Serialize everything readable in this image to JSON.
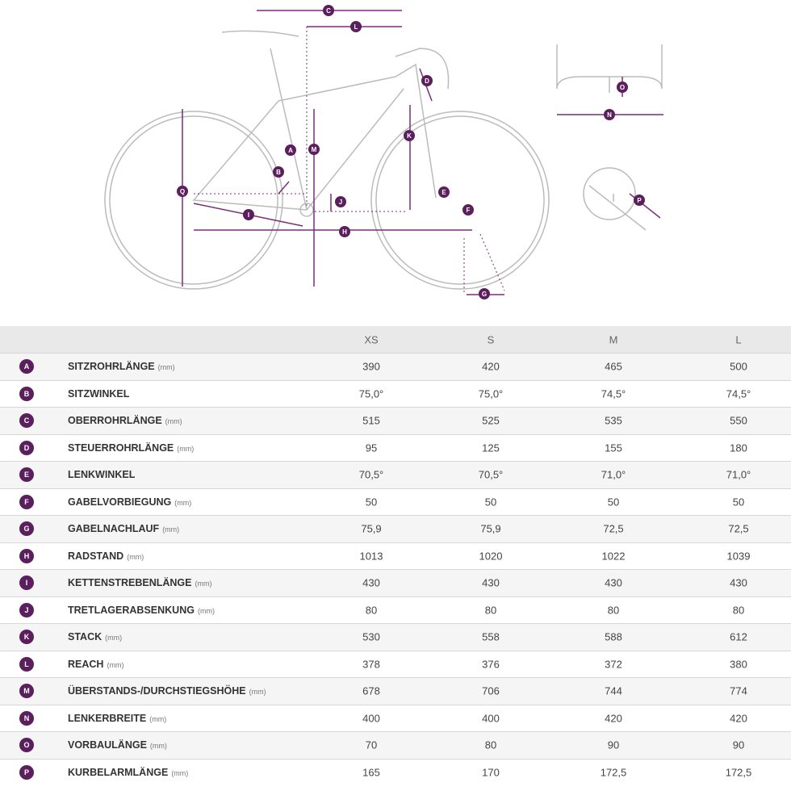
{
  "diagram": {
    "labels": [
      "C",
      "L",
      "D",
      "A",
      "M",
      "K",
      "B",
      "J",
      "E",
      "F",
      "Q",
      "I",
      "H",
      "G",
      "O",
      "N",
      "P"
    ]
  },
  "table": {
    "sizes": [
      "XS",
      "S",
      "M",
      "L"
    ],
    "rows": [
      {
        "letter": "A",
        "name": "SITZROHRLÄNGE",
        "unit": "(mm)",
        "values": [
          "390",
          "420",
          "465",
          "500"
        ]
      },
      {
        "letter": "B",
        "name": "SITZWINKEL",
        "values": [
          "75,0°",
          "75,0°",
          "74,5°",
          "74,5°"
        ]
      },
      {
        "letter": "C",
        "name": "OBERROHRLÄNGE",
        "unit": "(mm)",
        "values": [
          "515",
          "525",
          "535",
          "550"
        ]
      },
      {
        "letter": "D",
        "name": "STEUERROHRLÄNGE",
        "unit": "(mm)",
        "values": [
          "95",
          "125",
          "155",
          "180"
        ]
      },
      {
        "letter": "E",
        "name": "LENKWINKEL",
        "values": [
          "70,5°",
          "70,5°",
          "71,0°",
          "71,0°"
        ]
      },
      {
        "letter": "F",
        "name": "GABELVORBIEGUNG",
        "unit": "(mm)",
        "values": [
          "50",
          "50",
          "50",
          "50"
        ]
      },
      {
        "letter": "G",
        "name": "GABELNACHLAUF",
        "unit": "(mm)",
        "values": [
          "75,9",
          "75,9",
          "72,5",
          "72,5"
        ]
      },
      {
        "letter": "H",
        "name": "RADSTAND",
        "unit": "(mm)",
        "values": [
          "1013",
          "1020",
          "1022",
          "1039"
        ]
      },
      {
        "letter": "I",
        "name": "KETTENSTREBENLÄNGE",
        "unit": "(mm)",
        "values": [
          "430",
          "430",
          "430",
          "430"
        ]
      },
      {
        "letter": "J",
        "name": "TRETLAGERABSENKUNG",
        "unit": "(mm)",
        "values": [
          "80",
          "80",
          "80",
          "80"
        ]
      },
      {
        "letter": "K",
        "name": "STACK",
        "unit": "(mm)",
        "values": [
          "530",
          "558",
          "588",
          "612"
        ]
      },
      {
        "letter": "L",
        "name": "REACH",
        "unit": "(mm)",
        "values": [
          "378",
          "376",
          "372",
          "380"
        ]
      },
      {
        "letter": "M",
        "name": "ÜBERSTANDS-/DURCHSTIEGSHÖHE",
        "unit": "(mm)",
        "values": [
          "678",
          "706",
          "744",
          "774"
        ]
      },
      {
        "letter": "N",
        "name": "LENKERBREITE",
        "unit": "(mm)",
        "values": [
          "400",
          "400",
          "420",
          "420"
        ]
      },
      {
        "letter": "O",
        "name": "VORBAULÄNGE",
        "unit": "(mm)",
        "values": [
          "70",
          "80",
          "90",
          "90"
        ]
      },
      {
        "letter": "P",
        "name": "KURBELARMLÄNGE",
        "unit": "(mm)",
        "values": [
          "165",
          "170",
          "172,5",
          "172,5"
        ]
      }
    ]
  }
}
